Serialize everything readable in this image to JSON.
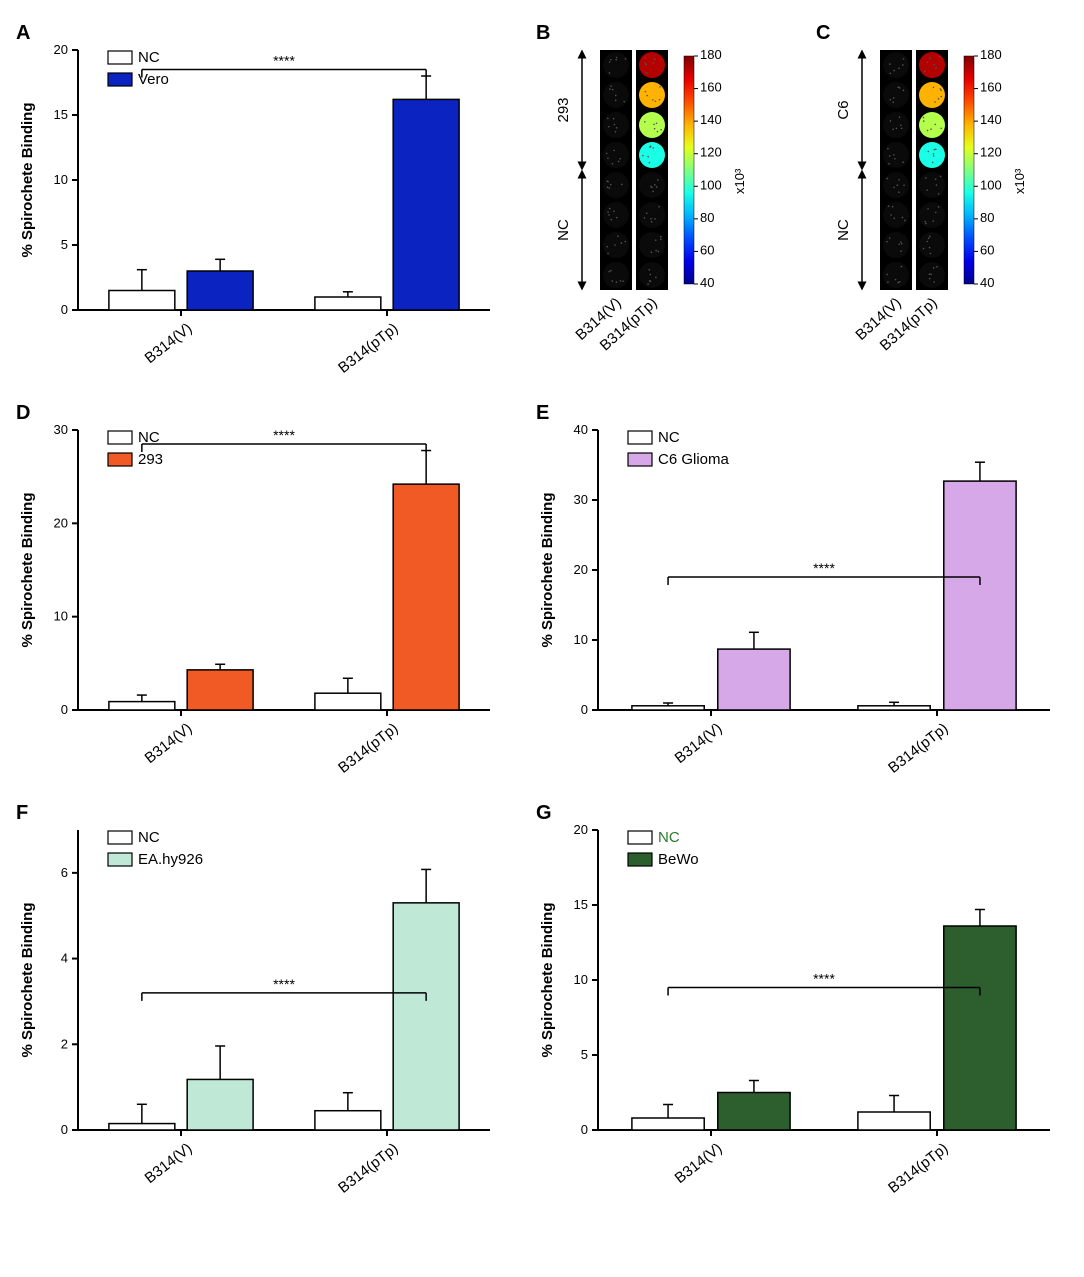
{
  "figure": {
    "panelA": {
      "label": "A",
      "type": "bar",
      "y_label": "% Spirochete Binding",
      "y_ticks": [
        0,
        5,
        10,
        15,
        20
      ],
      "ylim": [
        0,
        20
      ],
      "categories": [
        "B314(V)",
        "B314(pTp)"
      ],
      "series": [
        {
          "name": "NC",
          "color": "#ffffff",
          "border": "#000000",
          "values": [
            1.5,
            1.0
          ],
          "errors": [
            1.6,
            0.4
          ]
        },
        {
          "name": "Vero",
          "color": "#0b24c1",
          "border": "#000000",
          "values": [
            3.0,
            16.2
          ],
          "errors": [
            0.9,
            1.8
          ]
        }
      ],
      "significance": {
        "text": "****",
        "from_bar": 0,
        "to_bar": 3,
        "y": 18.5
      }
    },
    "panelB": {
      "label": "B",
      "type": "heatmap-wells",
      "row_labels": [
        "293",
        "NC"
      ],
      "col_labels": [
        "B314(V)",
        "B314(pTp)"
      ],
      "colorbar": {
        "ticks": [
          40,
          60,
          80,
          100,
          120,
          140,
          160,
          180
        ],
        "unit": "x10³"
      }
    },
    "panelC": {
      "label": "C",
      "type": "heatmap-wells",
      "row_labels": [
        "C6",
        "NC"
      ],
      "col_labels": [
        "B314(V)",
        "B314(pTp)"
      ],
      "colorbar": {
        "ticks": [
          40,
          60,
          80,
          100,
          120,
          140,
          160,
          180
        ],
        "unit": "x10³"
      }
    },
    "panelD": {
      "label": "D",
      "type": "bar",
      "y_label": "% Spirochete Binding",
      "y_ticks": [
        0,
        10,
        20,
        30
      ],
      "ylim": [
        0,
        30
      ],
      "categories": [
        "B314(V)",
        "B314(pTp)"
      ],
      "series": [
        {
          "name": "NC",
          "color": "#ffffff",
          "border": "#000000",
          "values": [
            0.9,
            1.8
          ],
          "errors": [
            0.7,
            1.6
          ]
        },
        {
          "name": "293",
          "color": "#f15a24",
          "border": "#000000",
          "values": [
            4.3,
            24.2
          ],
          "errors": [
            0.6,
            3.6
          ]
        }
      ],
      "significance": {
        "text": "****",
        "from_bar": 0,
        "to_bar": 3,
        "y": 28.5
      }
    },
    "panelE": {
      "label": "E",
      "type": "bar",
      "y_label": "% Spirochete Binding",
      "y_ticks": [
        0,
        10,
        20,
        30,
        40
      ],
      "ylim": [
        0,
        40
      ],
      "categories": [
        "B314(V)",
        "B314(pTp)"
      ],
      "series": [
        {
          "name": "NC",
          "color": "#ffffff",
          "border": "#000000",
          "values": [
            0.6,
            0.6
          ],
          "errors": [
            0.4,
            0.5
          ]
        },
        {
          "name": "C6 Glioma",
          "color": "#d7a8e8",
          "border": "#000000",
          "values": [
            8.7,
            32.7
          ],
          "errors": [
            2.4,
            2.7
          ]
        }
      ],
      "significance": {
        "text": "****",
        "from_bar": 0,
        "to_bar": 3,
        "y": 19.0
      }
    },
    "panelF": {
      "label": "F",
      "type": "bar",
      "y_label": "% Spirochete Binding",
      "y_ticks": [
        0,
        2,
        4,
        6
      ],
      "ylim": [
        0,
        7
      ],
      "categories": [
        "B314(V)",
        "B314(pTp)"
      ],
      "series": [
        {
          "name": "NC",
          "color": "#ffffff",
          "border": "#000000",
          "values": [
            0.15,
            0.45
          ],
          "errors": [
            0.45,
            0.42
          ]
        },
        {
          "name": "EA.hy926",
          "color": "#bfe8d7",
          "border": "#000000",
          "values": [
            1.18,
            5.3
          ],
          "errors": [
            0.78,
            0.78
          ]
        }
      ],
      "significance": {
        "text": "****",
        "from_bar": 0,
        "to_bar": 3,
        "y": 3.2
      }
    },
    "panelG": {
      "label": "G",
      "type": "bar",
      "y_label": "% Spirochete Binding",
      "y_ticks": [
        0,
        5,
        10,
        15,
        20
      ],
      "ylim": [
        0,
        20
      ],
      "categories": [
        "B314(V)",
        "B314(pTp)"
      ],
      "series": [
        {
          "name": "NC",
          "color": "#ffffff",
          "border": "#000000",
          "values": [
            0.8,
            1.2
          ],
          "errors": [
            0.9,
            1.1
          ],
          "label_color": "#2a7a2a"
        },
        {
          "name": "BeWo",
          "color": "#2d5e2d",
          "border": "#000000",
          "values": [
            2.5,
            13.6
          ],
          "errors": [
            0.8,
            1.1
          ]
        }
      ],
      "significance": {
        "text": "****",
        "from_bar": 0,
        "to_bar": 3,
        "y": 9.5
      }
    }
  },
  "style": {
    "bar_width": 0.32,
    "bar_gap": 0.06,
    "group_gap": 0.6,
    "axis_color": "#000000",
    "axis_width": 2,
    "error_cap": 5,
    "background": "#ffffff"
  }
}
